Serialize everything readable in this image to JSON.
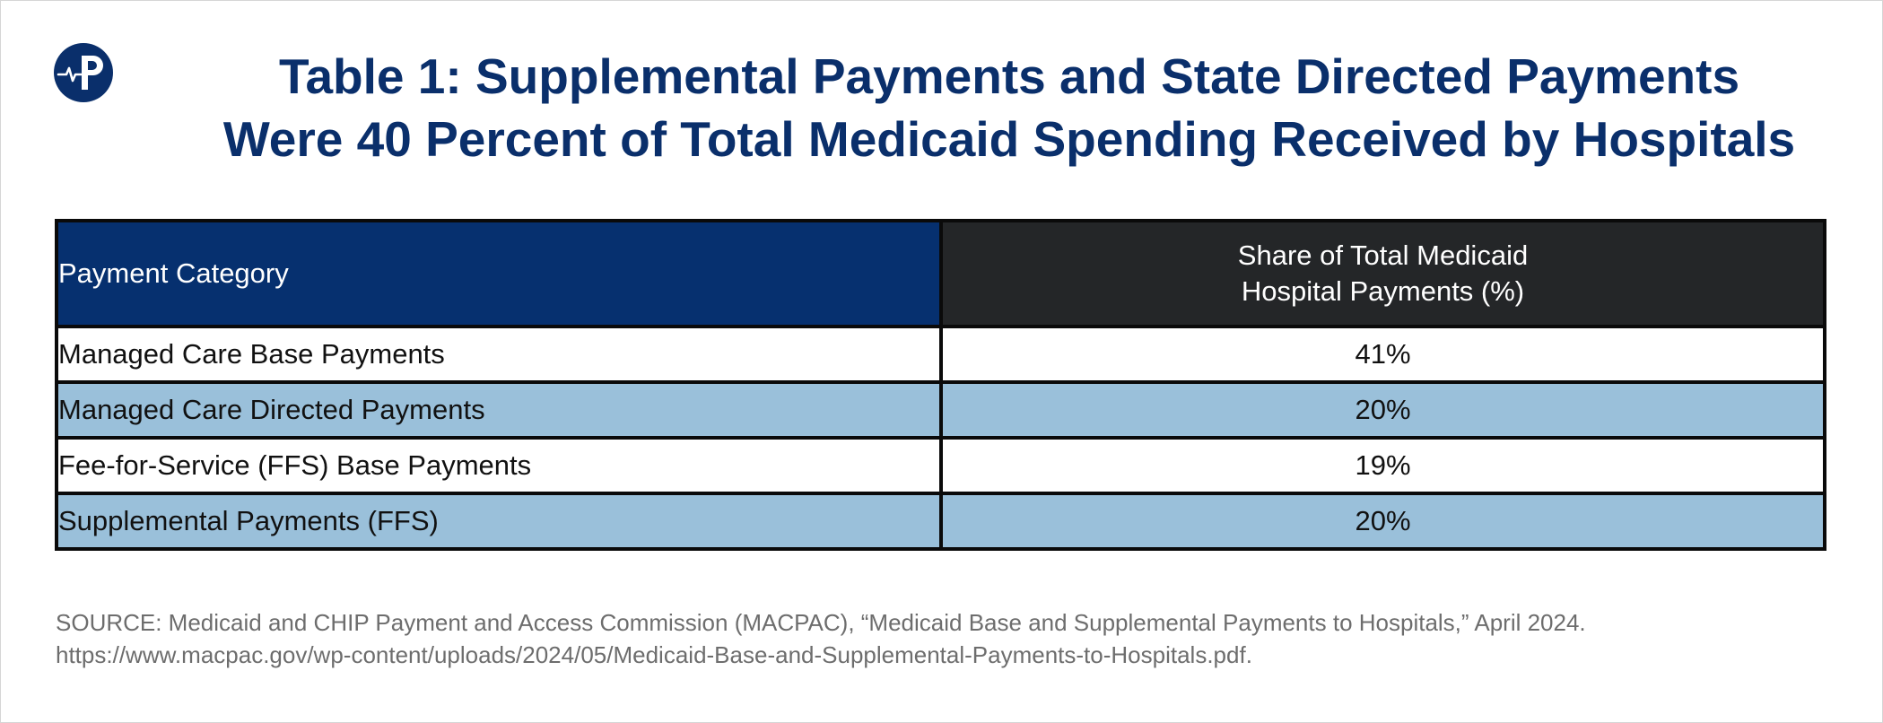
{
  "title": {
    "line1": "Table 1: Supplemental Payments and State Directed Payments",
    "line2": "Were 40 Percent of Total Medicaid Spending Received by Hospitals"
  },
  "logo": {
    "icon": "heartbeat-p-logo-icon",
    "bg_color": "#0a2f6b"
  },
  "chart_data": {
    "type": "table",
    "title": "Table 1: Supplemental Payments and State Directed Payments Were 40 Percent of Total Medicaid Spending Received by Hospitals",
    "columns": [
      "Payment Category",
      "Share of Total Medicaid Hospital Payments (%)"
    ],
    "header": {
      "category": "Payment Category",
      "share_line1": "Share of Total Medicaid",
      "share_line2": "Hospital Payments (%)"
    },
    "rows": [
      {
        "category": "Managed Care Base Payments",
        "share": "41%"
      },
      {
        "category": "Managed Care Directed Payments",
        "share": "20%"
      },
      {
        "category": "Fee-for-Service (FFS) Base Payments",
        "share": "19%"
      },
      {
        "category": "Supplemental Payments (FFS)",
        "share": "20%"
      }
    ]
  },
  "colors": {
    "title": "#0a2f6b",
    "header_category_bg": "#06306f",
    "header_share_bg": "#242628",
    "row_alt_bg": "#9ac0da",
    "source_text": "#6d6d6d"
  },
  "source": {
    "line1": "SOURCE: Medicaid and CHIP Payment and Access Commission (MACPAC), “Medicaid Base and Supplemental Payments to Hospitals,” April 2024.",
    "line2": "https://www.macpac.gov/wp-content/uploads/2024/05/Medicaid-Base-and-Supplemental-Payments-to-Hospitals.pdf."
  }
}
